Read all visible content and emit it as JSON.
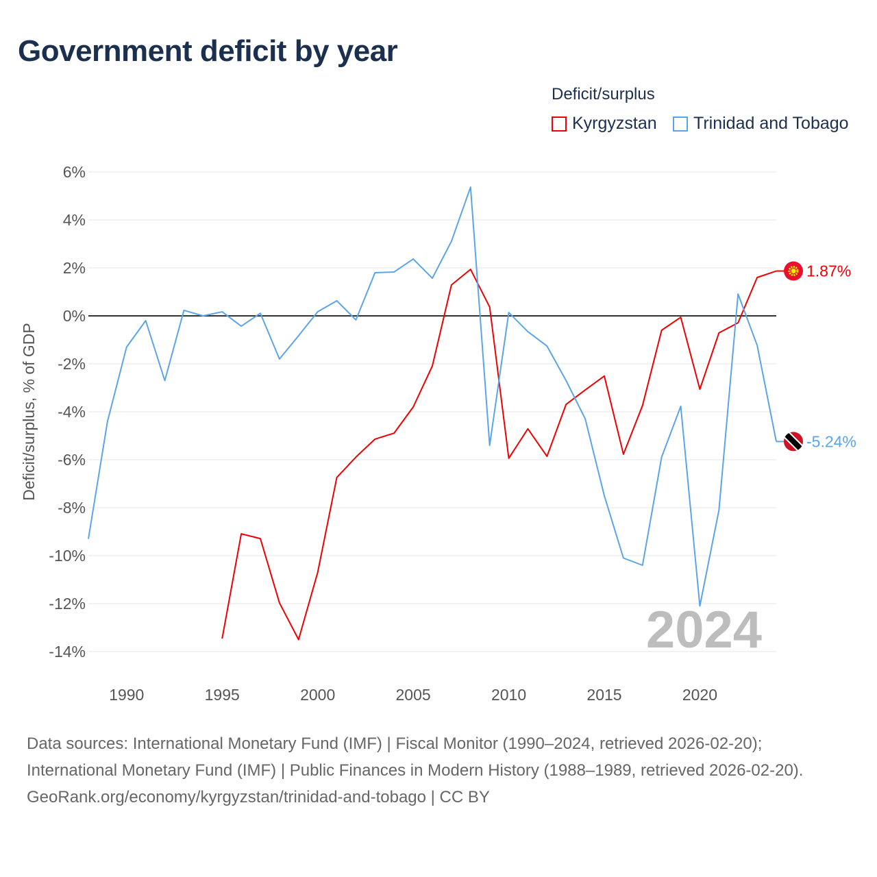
{
  "chart_data": {
    "type": "line",
    "title": "Government deficit by year",
    "ylabel": "Deficit/surplus, % of GDP",
    "xlabel": "",
    "ylim": [
      -14,
      6
    ],
    "xlim": [
      1988,
      2024
    ],
    "yticks": [
      6,
      4,
      2,
      0,
      -2,
      -4,
      -6,
      -8,
      -10,
      -12,
      -14
    ],
    "ytick_labels": [
      "6%",
      "4%",
      "2%",
      "0%",
      "-2%",
      "-4%",
      "-6%",
      "-8%",
      "-10%",
      "-12%",
      "-14%"
    ],
    "xticks": [
      1990,
      1995,
      2000,
      2005,
      2010,
      2015,
      2020
    ],
    "xtick_labels": [
      "1990",
      "1995",
      "2000",
      "2005",
      "2010",
      "2015",
      "2020"
    ],
    "legend_title": "Deficit/surplus",
    "legend_placement": "top-right",
    "year_watermark": "2024",
    "series": [
      {
        "name": "Kyrgyzstan",
        "color": "#ee0000",
        "end_label": "1.87%",
        "x": [
          1995,
          1996,
          1997,
          1998,
          1999,
          2000,
          2001,
          2002,
          2003,
          2004,
          2005,
          2006,
          2007,
          2008,
          2009,
          2010,
          2011,
          2012,
          2013,
          2014,
          2015,
          2016,
          2017,
          2018,
          2019,
          2020,
          2021,
          2022,
          2023,
          2024
        ],
        "values": [
          -13.46,
          -9.09,
          -9.29,
          -11.97,
          -13.5,
          -10.7,
          -6.74,
          -5.89,
          -5.14,
          -4.89,
          -3.8,
          -2.09,
          1.29,
          1.94,
          0.37,
          -5.94,
          -4.71,
          -5.86,
          -3.69,
          -3.09,
          -2.51,
          -5.77,
          -3.74,
          -0.6,
          -0.06,
          -3.06,
          -0.71,
          -0.29,
          1.6,
          1.87
        ]
      },
      {
        "name": "Trinidad and Tobago",
        "color": "#5aa4ea",
        "end_label": "-5.24%",
        "x": [
          1988,
          1989,
          1990,
          1991,
          1992,
          1993,
          1994,
          1995,
          1996,
          1997,
          1998,
          1999,
          2000,
          2001,
          2002,
          2003,
          2004,
          2005,
          2006,
          2007,
          2008,
          2009,
          2010,
          2011,
          2012,
          2013,
          2014,
          2015,
          2016,
          2017,
          2018,
          2019,
          2020,
          2021,
          2022,
          2023,
          2024
        ],
        "values": [
          -9.3,
          -4.4,
          -1.3,
          -0.2,
          -2.7,
          0.23,
          0,
          0.17,
          -0.43,
          0.11,
          -1.8,
          -0.83,
          0.17,
          0.63,
          -0.17,
          1.8,
          1.83,
          2.37,
          1.57,
          3.11,
          5.37,
          -5.4,
          0.14,
          -0.66,
          -1.26,
          -2.7,
          -4.29,
          -7.5,
          -10.1,
          -10.4,
          -5.89,
          -3.77,
          -12.1,
          -8.1,
          0.91,
          -1.23,
          -5.24
        ]
      }
    ]
  },
  "footer": {
    "line1": "Data sources: International Monetary Fund (IMF) | Fiscal Monitor (1990–2024, retrieved 2026-02-20); International Monetary Fund (IMF) | Public Finances in Modern History (1988–1989, retrieved 2026-02-20).",
    "line2": "GeoRank.org/economy/kyrgyzstan/trinidad-and-tobago | CC BY"
  }
}
